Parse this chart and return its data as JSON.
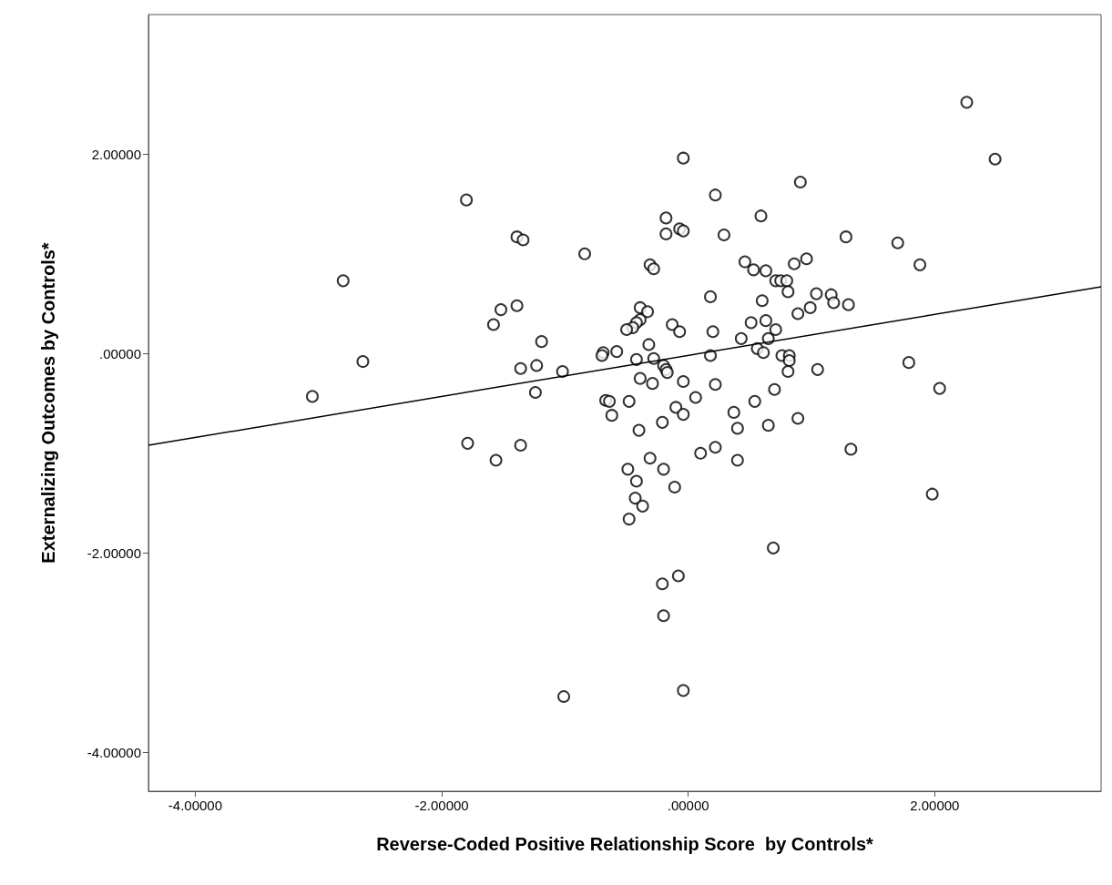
{
  "chart_data": {
    "type": "scatter",
    "xlabel": "Reverse-Coded Positive Relationship Score  by Controls*",
    "ylabel": "Externalizing Outcomes by Controls*",
    "xlim": [
      -4.38,
      3.35
    ],
    "ylim": [
      -4.39,
      3.4
    ],
    "xticks": [
      {
        "value": -4,
        "label": "-4.00000"
      },
      {
        "value": -2,
        "label": "-2.00000"
      },
      {
        "value": 0,
        "label": ".00000"
      },
      {
        "value": 2,
        "label": "2.00000"
      }
    ],
    "yticks": [
      {
        "value": -4,
        "label": "-4.00000"
      },
      {
        "value": -2,
        "label": "-2.00000"
      },
      {
        "value": 0,
        "label": ".00000"
      },
      {
        "value": 2,
        "label": "2.00000"
      }
    ],
    "grid": false,
    "series": [
      {
        "color": "#000000",
        "marker": "circle",
        "x": [
          2.26,
          2.49,
          -0.04,
          -1.8,
          0.22,
          0.91,
          -1.39,
          -1.34,
          -0.18,
          -0.18,
          -0.07,
          -0.04,
          0.29,
          0.59,
          1.28,
          1.7,
          1.88,
          -2.8,
          -0.84,
          -0.31,
          -0.28,
          0.46,
          0.53,
          0.63,
          0.71,
          0.75,
          0.8,
          0.81,
          0.86,
          0.96,
          0.6,
          0.18,
          1.04,
          1.16,
          1.18,
          1.3,
          0.89,
          0.99,
          -1.52,
          -1.39,
          -1.58,
          -1.19,
          -0.39,
          -0.33,
          -0.39,
          -0.42,
          -0.45,
          -0.5,
          -0.13,
          -0.07,
          -0.32,
          0.51,
          0.63,
          0.71,
          0.65,
          0.43,
          0.2,
          0.56,
          0.61,
          0.18,
          -0.69,
          -0.7,
          -0.58,
          -0.28,
          -0.42,
          -0.2,
          -0.18,
          -0.17,
          -0.29,
          -0.39,
          -0.04,
          -2.64,
          -3.05,
          -1.36,
          -1.23,
          -1.02,
          -1.24,
          0.76,
          0.82,
          0.82,
          0.81,
          1.05,
          1.79,
          0.22,
          0.06,
          -0.1,
          -0.04,
          0.37,
          0.4,
          0.7,
          0.54,
          0.65,
          0.89,
          -0.67,
          -0.64,
          -0.48,
          -0.62,
          -0.4,
          -0.21,
          2.04,
          -1.79,
          -1.56,
          -1.36,
          -0.31,
          0.1,
          0.22,
          0.4,
          1.32,
          -0.49,
          -0.2,
          -0.42,
          -0.11,
          -0.43,
          -0.37,
          -0.48,
          1.98,
          0.69,
          -0.08,
          -0.21,
          -0.2,
          -1.01,
          -0.04
        ],
        "values": [
          2.52,
          1.95,
          1.96,
          1.54,
          1.59,
          1.72,
          1.17,
          1.14,
          1.36,
          1.2,
          1.25,
          1.23,
          1.19,
          1.38,
          1.17,
          1.11,
          0.89,
          0.73,
          1.0,
          0.89,
          0.85,
          0.92,
          0.84,
          0.83,
          0.73,
          0.73,
          0.73,
          0.62,
          0.9,
          0.95,
          0.53,
          0.57,
          0.6,
          0.59,
          0.51,
          0.49,
          0.4,
          0.46,
          0.44,
          0.48,
          0.29,
          0.12,
          0.46,
          0.42,
          0.34,
          0.31,
          0.26,
          0.24,
          0.29,
          0.22,
          0.09,
          0.31,
          0.33,
          0.24,
          0.15,
          0.15,
          0.22,
          0.05,
          0.01,
          -0.02,
          0.01,
          -0.02,
          0.02,
          -0.05,
          -0.06,
          -0.12,
          -0.16,
          -0.19,
          -0.3,
          -0.25,
          -0.28,
          -0.08,
          -0.43,
          -0.15,
          -0.12,
          -0.18,
          -0.39,
          -0.02,
          -0.02,
          -0.07,
          -0.18,
          -0.16,
          -0.09,
          -0.31,
          -0.44,
          -0.54,
          -0.61,
          -0.59,
          -0.75,
          -0.36,
          -0.48,
          -0.72,
          -0.65,
          -0.47,
          -0.48,
          -0.48,
          -0.62,
          -0.77,
          -0.69,
          -0.35,
          -0.9,
          -1.07,
          -0.92,
          -1.05,
          -1.0,
          -0.94,
          -1.07,
          -0.96,
          -1.16,
          -1.16,
          -1.28,
          -1.34,
          -1.45,
          -1.53,
          -1.66,
          -1.41,
          -1.95,
          -2.23,
          -2.31,
          -2.63,
          -3.44,
          -3.38
        ]
      },
      {
        "type": "line",
        "marker": "none",
        "color": "#000000",
        "x": [
          -4.38,
          3.35
        ],
        "values": [
          -0.92,
          0.67
        ]
      }
    ]
  }
}
